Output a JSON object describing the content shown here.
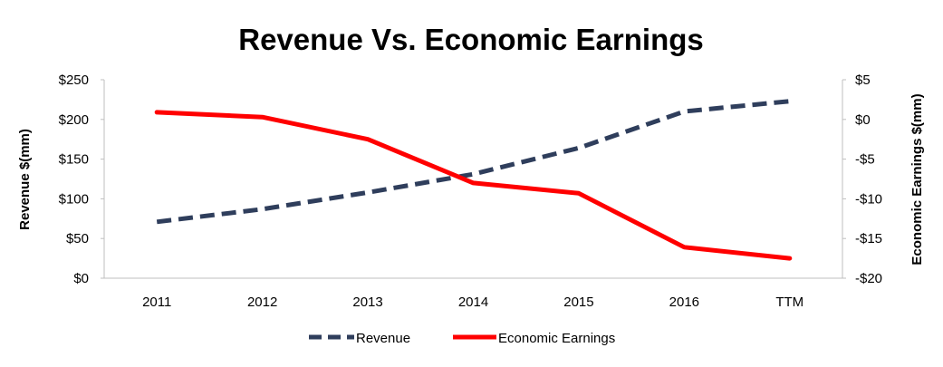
{
  "chart_data": {
    "type": "line",
    "title": "Revenue Vs. Economic Earnings",
    "categories": [
      "2011",
      "2012",
      "2013",
      "2014",
      "2015",
      "2016",
      "TTM"
    ],
    "y_left": {
      "label": "Revenue $(mm)",
      "ylim": [
        0,
        250
      ],
      "ticks": [
        0,
        50,
        100,
        150,
        200,
        250
      ],
      "tick_labels": [
        "$0",
        "$50",
        "$100",
        "$150",
        "$200",
        "$250"
      ]
    },
    "y_right": {
      "label": "Economic Earnings $(mm)",
      "ylim": [
        -20,
        5
      ],
      "ticks": [
        -20,
        -15,
        -10,
        -5,
        0,
        5
      ],
      "tick_labels": [
        "-$20",
        "-$15",
        "-$10",
        "-$5",
        "$0",
        "$5"
      ]
    },
    "series": [
      {
        "name": "Revenue",
        "axis": "left",
        "color": "#2f3e5c",
        "style": "dashed",
        "values": [
          71,
          87,
          108,
          131,
          164,
          210,
          223
        ]
      },
      {
        "name": "Economic Earnings",
        "axis": "right",
        "color": "#ff0000",
        "style": "solid",
        "values": [
          0.9,
          0.3,
          -2.5,
          -8.0,
          -9.3,
          -16.1,
          -17.5
        ]
      }
    ],
    "grid": false,
    "legend_position": "bottom"
  }
}
